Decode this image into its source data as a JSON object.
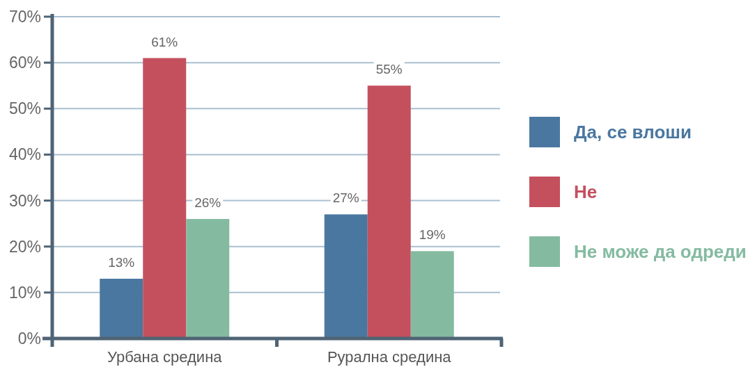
{
  "chart_data": {
    "type": "bar",
    "categories": [
      "Урбана средина",
      "Рурална средина"
    ],
    "series": [
      {
        "name": "Да, се влоши",
        "color": "#4a77a0",
        "values": [
          13,
          27
        ],
        "value_labels": [
          "13%",
          "27%"
        ]
      },
      {
        "name": "Не",
        "color": "#c4505e",
        "values": [
          61,
          55
        ],
        "value_labels": [
          "61%",
          "55%"
        ]
      },
      {
        "name": "Не може да одреди",
        "color": "#84bba0",
        "values": [
          26,
          19
        ],
        "value_labels": [
          "26%",
          "19%"
        ]
      }
    ],
    "ylim": [
      0,
      70
    ],
    "yticks": [
      {
        "value": 0,
        "label": "0%"
      },
      {
        "value": 10,
        "label": "10%"
      },
      {
        "value": 20,
        "label": "20%"
      },
      {
        "value": 30,
        "label": "30%"
      },
      {
        "value": 40,
        "label": "40%"
      },
      {
        "value": 50,
        "label": "50%"
      },
      {
        "value": 60,
        "label": "60%"
      },
      {
        "value": 70,
        "label": "70%"
      }
    ],
    "grid": "y",
    "legend": "right"
  }
}
